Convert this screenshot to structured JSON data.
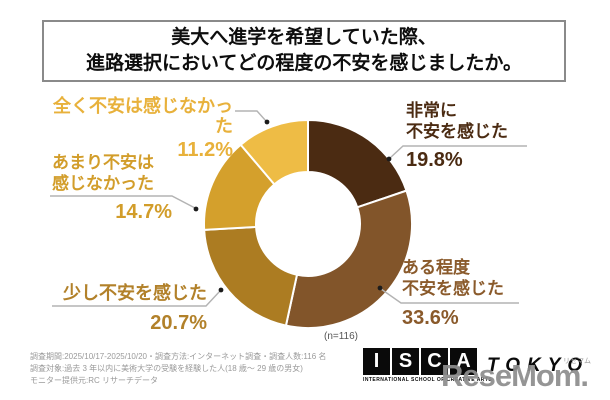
{
  "title": {
    "line1": "美大へ進学を希望していた際、",
    "line2": "進路選択においてどの程度の不安を感じましたか。"
  },
  "chart_data": {
    "type": "pie",
    "subtype": "donut",
    "title": "美大へ進学を希望していた際、進路選択においてどの程度の不安を感じましたか。",
    "unit": "%",
    "direction": "clockwise",
    "start_angle_deg": 0,
    "sample_label": "(n=116)",
    "categories": [
      "非常に不安を感じた",
      "ある程度不安を感じた",
      "少し不安を感じた",
      "あまり不安は感じなかった",
      "全く不安は感じなかった"
    ],
    "values": [
      19.8,
      33.6,
      20.7,
      14.7,
      11.2
    ],
    "segments": [
      {
        "label": "非常に不安を感じた",
        "value": 19.8,
        "pct_label": "19.8%",
        "color": "#4b2b12",
        "text_color": "#4b2b12"
      },
      {
        "label": "ある程度不安を感じた",
        "value": 33.6,
        "pct_label": "33.6%",
        "color": "#82552a",
        "text_color": "#8a5a2b"
      },
      {
        "label": "少し不安を感じた",
        "value": 20.7,
        "pct_label": "20.7%",
        "color": "#ac7c22",
        "text_color": "#b2812a"
      },
      {
        "label": "あまり不安は感じなかった",
        "value": 14.7,
        "pct_label": "14.7%",
        "color": "#d4a02c",
        "text_color": "#d29d2a"
      },
      {
        "label": "全く不安は感じなかった",
        "value": 11.2,
        "pct_label": "11.2%",
        "color": "#eebc45",
        "text_color": "#e8b13b"
      }
    ],
    "callouts": {
      "very": {
        "line1": "非常に",
        "line2": "不安を感じた",
        "pct": "19.8%"
      },
      "somewhat": {
        "line1": "ある程度",
        "line2": "不安を感じた",
        "pct": "33.6%"
      },
      "slight": {
        "line1": "少し不安を感じた",
        "line2": "",
        "pct": "20.7%"
      },
      "not_much": {
        "line1": "あまり不安は",
        "line2": "感じなかった",
        "pct": "14.7%"
      },
      "not_at_all": {
        "line1": "全く不安は感じなかった",
        "line2": "",
        "pct": "11.2%"
      }
    }
  },
  "footer": {
    "line1": "調査期間:2025/10/17-2025/10/20・調査方法:インターネット調査・調査人数:116 名",
    "line2": "調査対象:過去 3 年以内に美術大学の受験を経験した人(18 歳〜 29 歳の男女)",
    "line3": "モニター提供元:RC リサーチデータ"
  },
  "logo": {
    "letters": [
      "I",
      "S",
      "C",
      "A"
    ],
    "tagline": "INTERNATIONAL SCHOOL OF CREATIVE ARTS",
    "wordmark": "TOKYO",
    "watermark": "ReseMom.",
    "watermark_kana": "リセマム"
  }
}
